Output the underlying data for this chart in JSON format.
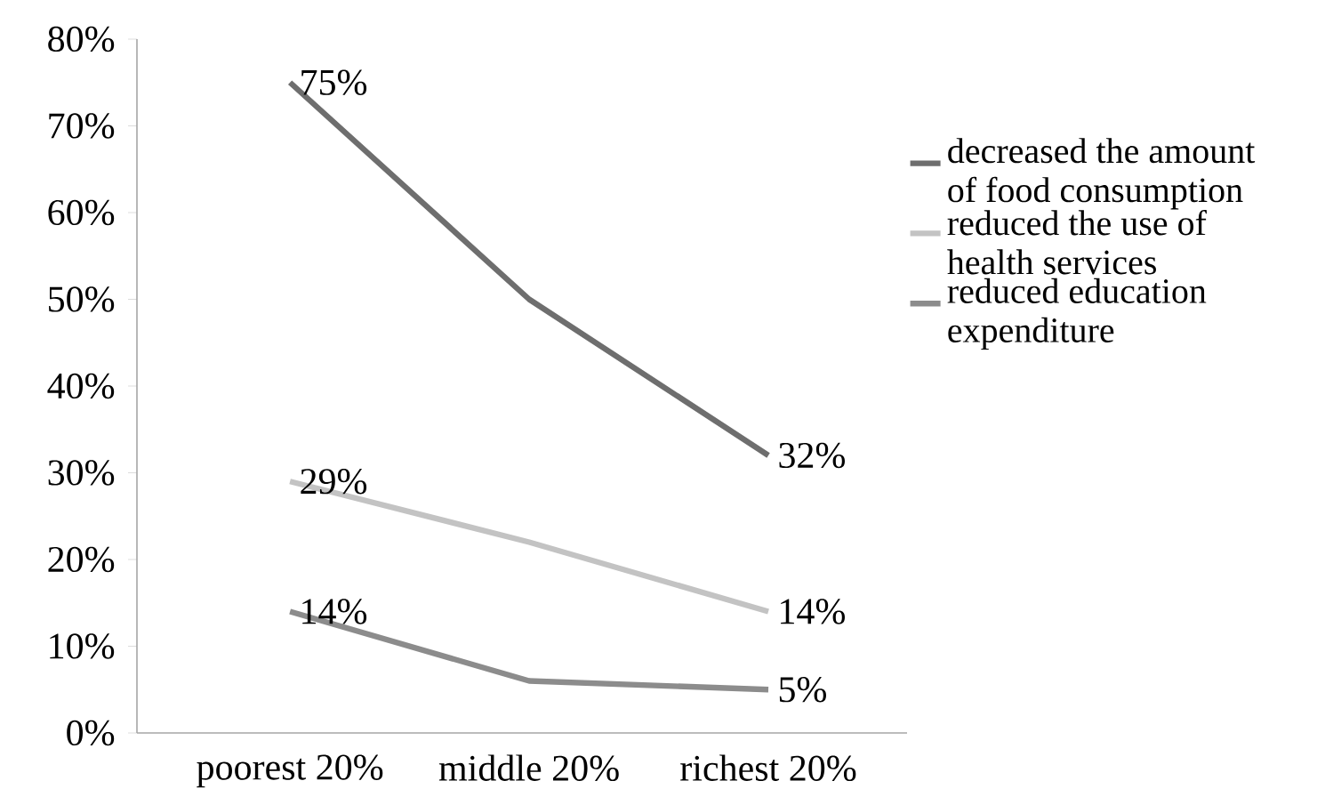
{
  "chart_data": {
    "type": "line",
    "categories": [
      "poorest 20%",
      "middle 20%",
      "richest 20%"
    ],
    "series": [
      {
        "name": "decreased the amount of food consumption",
        "color": "#6e6e6e",
        "values": [
          75,
          50,
          32
        ],
        "value_labels": [
          "75%",
          null,
          "32%"
        ]
      },
      {
        "name": "reduced the use of health services",
        "color": "#c3c3c3",
        "values": [
          29,
          22,
          14
        ],
        "value_labels": [
          "29%",
          null,
          "14%"
        ]
      },
      {
        "name": "reduced education expenditure",
        "color": "#8c8c8c",
        "values": [
          14,
          6,
          5
        ],
        "value_labels": [
          "14%",
          null,
          "5%"
        ]
      }
    ],
    "ylim": [
      0,
      80
    ],
    "yticks": [
      {
        "value": 0,
        "label": "0%"
      },
      {
        "value": 10,
        "label": "10%"
      },
      {
        "value": 20,
        "label": "20%"
      },
      {
        "value": 30,
        "label": "30%"
      },
      {
        "value": 40,
        "label": "40%"
      },
      {
        "value": 50,
        "label": "50%"
      },
      {
        "value": 60,
        "label": "60%"
      },
      {
        "value": 70,
        "label": "70%"
      },
      {
        "value": 80,
        "label": "80%"
      }
    ],
    "legend": "right"
  }
}
